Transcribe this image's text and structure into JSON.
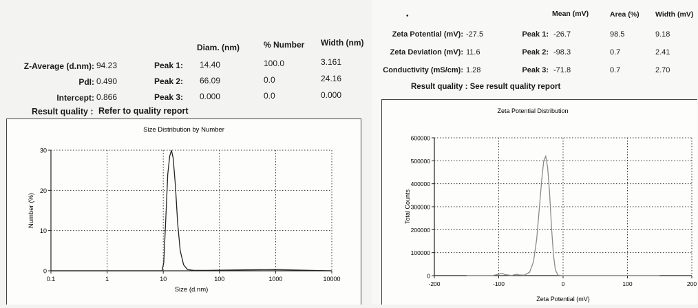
{
  "size_report": {
    "table_headers": {
      "diam": "Diam. (nm)",
      "number": "% Number",
      "width": "Width (nm)"
    },
    "rows": [
      {
        "label": "Z-Average (d.nm):",
        "value": "94.23",
        "peak": "Peak 1:",
        "diam": "14.40",
        "number": "100.0",
        "width": "3.161"
      },
      {
        "label": "PdI:",
        "value": "0.490",
        "peak": "Peak 2:",
        "diam": "66.09",
        "number": "0.0",
        "width": "24.16"
      },
      {
        "label": "Intercept:",
        "value": "0.866",
        "peak": "Peak 3:",
        "diam": "0.000",
        "number": "0.0",
        "width": "0.000"
      }
    ],
    "quality_label": "Result quality :",
    "quality_value": "Refer to quality report"
  },
  "zeta_report": {
    "table_headers": {
      "mean": "Mean (mV)",
      "area": "Area (%)",
      "width": "Width (mV)"
    },
    "rows": [
      {
        "label": "Zeta Potential (mV):",
        "value": "-27.5",
        "peak": "Peak 1:",
        "mean": "-26.7",
        "area": "98.5",
        "width": "9.18"
      },
      {
        "label": "Zeta Deviation (mV):",
        "value": "11.6",
        "peak": "Peak 2:",
        "mean": "-98.3",
        "area": "0.7",
        "width": "2.41"
      },
      {
        "label": "Conductivity (mS/cm):",
        "value": "1.28",
        "peak": "Peak 3:",
        "mean": "-71.8",
        "area": "0.7",
        "width": "2.70"
      }
    ],
    "quality_text": "Result quality : See result quality report"
  },
  "chart_data": [
    {
      "type": "line",
      "title": "Size Distribution by Number",
      "xlabel": "Size (d.nm)",
      "ylabel": "Number (%)",
      "x_scale": "log",
      "xlim": [
        0.1,
        10000
      ],
      "ylim": [
        0,
        30
      ],
      "x_ticks": [
        "0.1",
        "1",
        "10",
        "100",
        "1000",
        "10000"
      ],
      "y_ticks": [
        "0",
        "10",
        "20",
        "30"
      ],
      "grid": true,
      "color": "#222222",
      "series": [
        {
          "x": [
            0.1,
            9.5,
            10.2,
            11.0,
            12.0,
            13.0,
            14.0,
            15.0,
            16.5,
            18.0,
            20.0,
            23.0,
            27.0,
            35.0,
            60.0,
            200.0,
            1000.0,
            10000.0
          ],
          "y": [
            0,
            0,
            2,
            12,
            24,
            28.5,
            30,
            28,
            21,
            12,
            5,
            1.5,
            0.3,
            0.1,
            0.1,
            0.2,
            0.3,
            0
          ]
        }
      ]
    },
    {
      "type": "line",
      "title": "Zeta Potential Distribution",
      "xlabel": "Zeta Potential (mV)",
      "ylabel": "Total Counts",
      "xlim": [
        -200,
        200
      ],
      "ylim": [
        0,
        600000
      ],
      "x_ticks": [
        "-200",
        "-100",
        "0",
        "100",
        "200"
      ],
      "y_ticks": [
        "0",
        "100000",
        "200000",
        "300000",
        "400000",
        "500000",
        "600000"
      ],
      "grid": true,
      "color": "#8a8a8a",
      "series": [
        {
          "x": [
            -150,
            -110,
            -100,
            -95,
            -90,
            -80,
            -72,
            -68,
            -60,
            -52,
            -46,
            -41,
            -37,
            -33,
            -30,
            -27,
            -24,
            -21,
            -18,
            -15,
            -12,
            -8,
            0,
            10,
            50,
            150
          ],
          "y": [
            0,
            0,
            6000,
            10000,
            4000,
            1000,
            6000,
            3000,
            2000,
            15000,
            60000,
            160000,
            290000,
            420000,
            500000,
            520000,
            470000,
            360000,
            210000,
            90000,
            25000,
            2000,
            0,
            0,
            0,
            0
          ]
        }
      ]
    }
  ]
}
